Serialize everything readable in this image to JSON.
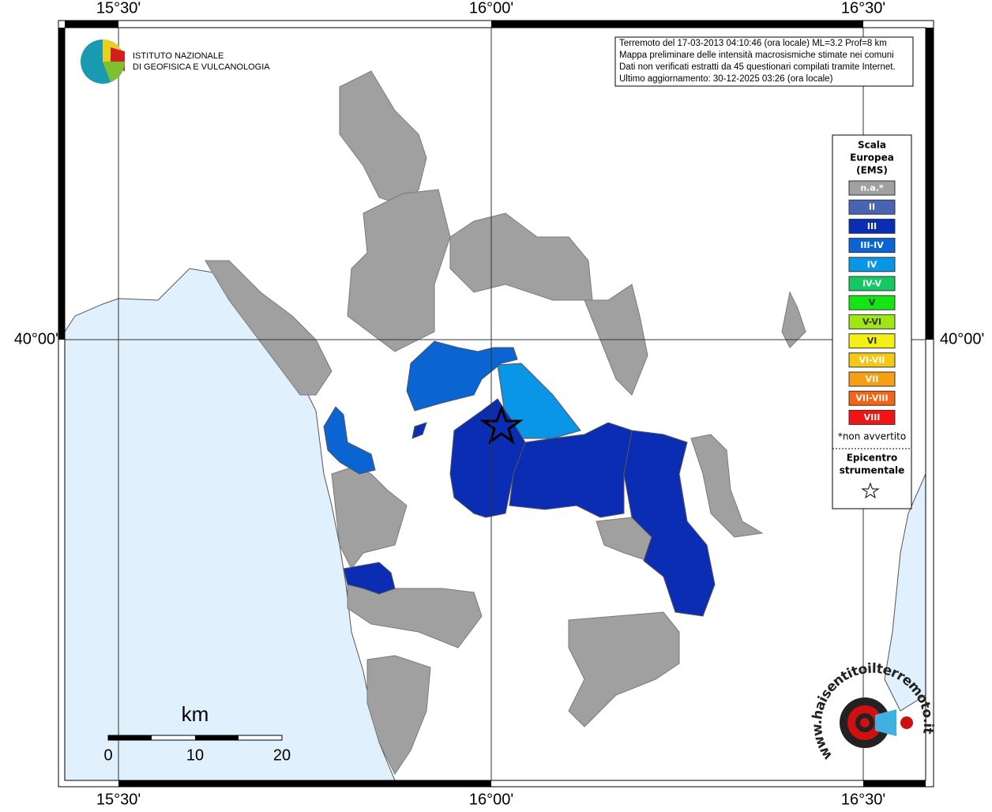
{
  "map": {
    "top_labels": [
      "15°30'",
      "16°00'",
      "16°30'"
    ],
    "bottom_labels": [
      "15°30'",
      "16°00'",
      "16°30'"
    ],
    "left_label": "40°00'",
    "right_label": "40°00'",
    "logo": [
      "ISTITUTO NAZIONALE",
      "DI GEOFISICA E VULCANOLOGIA"
    ],
    "info": [
      "Terremoto del 17-03-2013 04:10:46 (ora locale) ML=3.2 Prof=8 km",
      "Mappa preliminare delle intensità macrosismiche stimate nei comuni",
      "Dati non verificati estratti da 45 questionari compilati tramite Internet.",
      "Ultimo aggiornamento: 30-12-2025 03:26 (ora locale)"
    ],
    "legend": {
      "title": [
        "Scala",
        "Europea",
        "(EMS)"
      ],
      "items": [
        {
          "label": "n.a.*",
          "color": "#a0a0a0"
        },
        {
          "label": "II",
          "color": "#4a64b4"
        },
        {
          "label": "III",
          "color": "#0a2db4"
        },
        {
          "label": "III-IV",
          "color": "#0a64d2"
        },
        {
          "label": "IV",
          "color": "#0a96e6"
        },
        {
          "label": "IV-V",
          "color": "#14c864"
        },
        {
          "label": "V",
          "color": "#14e614"
        },
        {
          "label": "V-VI",
          "color": "#a0e614"
        },
        {
          "label": "VI",
          "color": "#f5f014"
        },
        {
          "label": "VI-VII",
          "color": "#f5c814"
        },
        {
          "label": "VII",
          "color": "#f5a014"
        },
        {
          "label": "VII-VIII",
          "color": "#f56414"
        },
        {
          "label": "VIII",
          "color": "#f01414"
        }
      ],
      "note": "*non avvertito",
      "epicenter": [
        "Epicentro",
        "strumentale"
      ]
    },
    "scale": {
      "unit": "km",
      "ticks": [
        "0",
        "10",
        "20"
      ]
    },
    "site_logo": "www.haisentitoilterremoto.it"
  }
}
